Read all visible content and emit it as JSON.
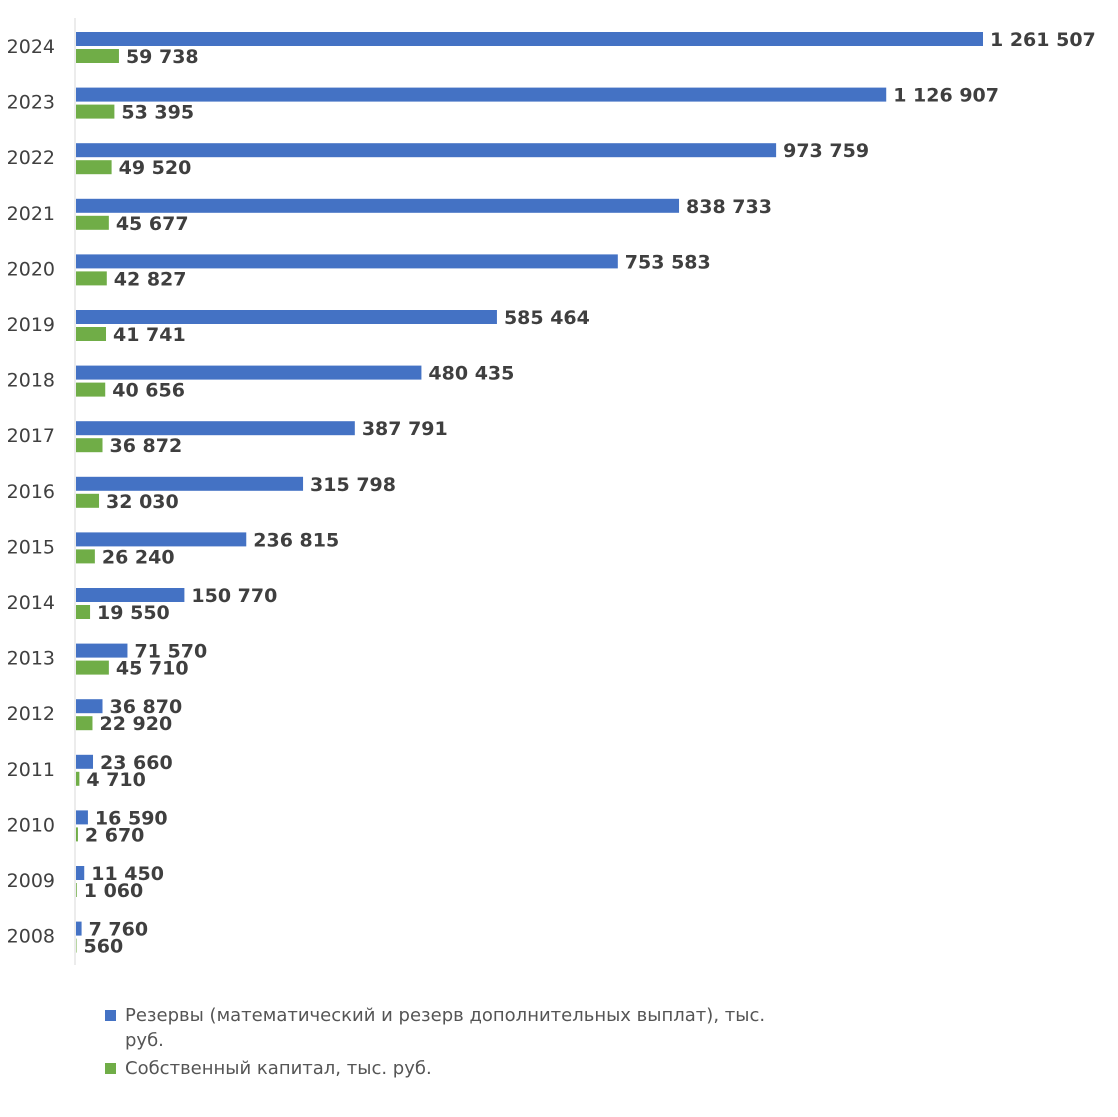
{
  "colors": {
    "reserves": "#4472c4",
    "equity": "#70ad47",
    "axis": "#d9d9d9"
  },
  "legend": {
    "reserves_label": "Резервы (математический и резерв дополнительных выплат), тыс. руб.",
    "equity_label": "Собственный капитал, тыс. руб."
  },
  "chart_data": {
    "type": "bar",
    "orientation": "horizontal",
    "grid": false,
    "legend_position": "bottom",
    "categories": [
      "2024",
      "2023",
      "2022",
      "2021",
      "2020",
      "2019",
      "2018",
      "2017",
      "2016",
      "2015",
      "2014",
      "2013",
      "2012",
      "2011",
      "2010",
      "2009",
      "2008"
    ],
    "series": [
      {
        "name": "Резервы (математический и резерв дополнительных выплат), тыс. руб.",
        "values": [
          1261507,
          1126907,
          973759,
          838733,
          753583,
          585464,
          480435,
          387791,
          315798,
          236815,
          150770,
          71570,
          36870,
          23660,
          16590,
          11450,
          7760
        ],
        "labels": [
          "1 261 507",
          "1 126 907",
          "973 759",
          "838 733",
          "753 583",
          "585 464",
          "480 435",
          "387 791",
          "315 798",
          "236 815",
          "150 770",
          "71 570",
          "36 870",
          "23 660",
          "16 590",
          "11 450",
          "7 760"
        ]
      },
      {
        "name": "Собственный капитал, тыс. руб.",
        "values": [
          59738,
          53395,
          49520,
          45677,
          42827,
          41741,
          40656,
          36872,
          32030,
          26240,
          19550,
          45710,
          22920,
          4710,
          2670,
          1060,
          560
        ],
        "labels": [
          "59 738",
          "53 395",
          "49 520",
          "45 677",
          "42 827",
          "41 741",
          "40 656",
          "36 872",
          "32 030",
          "26 240",
          "19 550",
          "45 710",
          "22 920",
          "4 710",
          "2 670",
          "1 060",
          "560"
        ]
      }
    ]
  }
}
